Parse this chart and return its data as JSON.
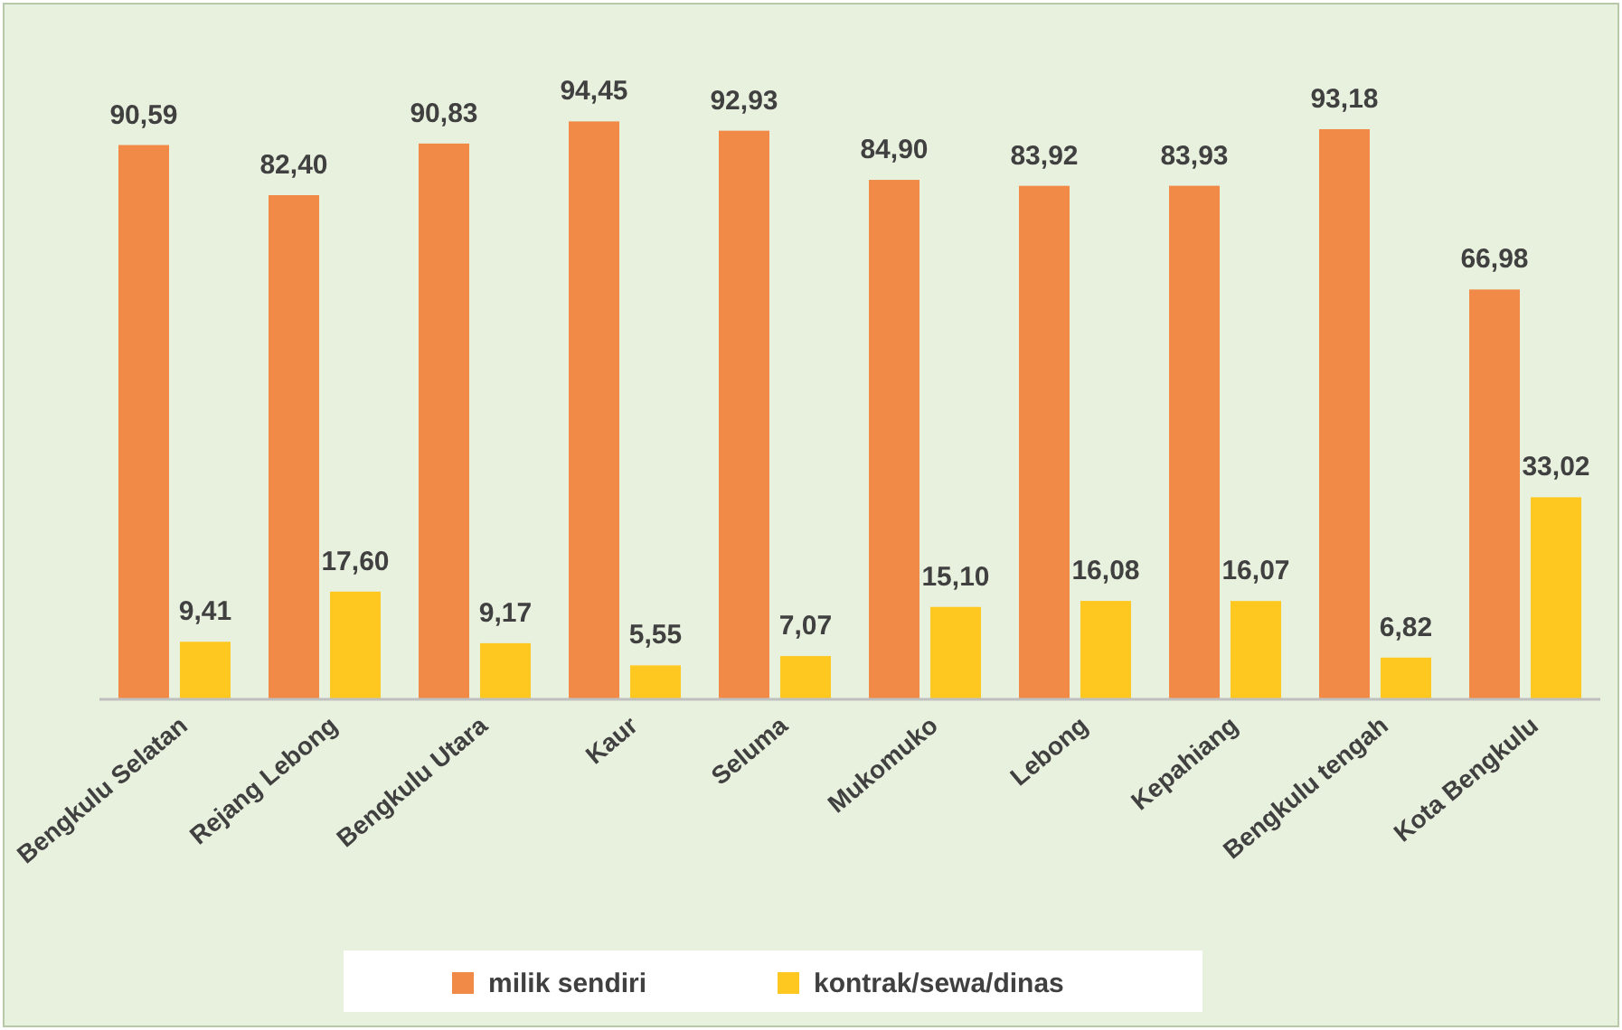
{
  "chart_data": {
    "type": "bar",
    "categories": [
      "Bengkulu Selatan",
      "Rejang Lebong",
      "Bengkulu Utara",
      "Kaur",
      "Seluma",
      "Mukomuko",
      "Lebong",
      "Kepahiang",
      "Bengkulu tengah",
      "Kota Bengkulu"
    ],
    "series": [
      {
        "name": "milik sendiri",
        "color": "#f08a46",
        "values": [
          90.59,
          82.4,
          90.83,
          94.45,
          92.93,
          84.9,
          83.92,
          83.93,
          93.18,
          66.98
        ],
        "value_labels": [
          "90,59",
          "82,40",
          "90,83",
          "94,45",
          "92,93",
          "84,90",
          "83,92",
          "83,93",
          "93,18",
          "66,98"
        ]
      },
      {
        "name": "kontrak/sewa/dinas",
        "color": "#ffc820",
        "values": [
          9.41,
          17.6,
          9.17,
          5.55,
          7.07,
          15.1,
          16.08,
          16.07,
          6.82,
          33.02
        ],
        "value_labels": [
          "9,41",
          "17,60",
          "9,17",
          "5,55",
          "7,07",
          "15,10",
          "16,08",
          "16,07",
          "6,82",
          "33,02"
        ]
      }
    ],
    "legend": "bottom"
  }
}
